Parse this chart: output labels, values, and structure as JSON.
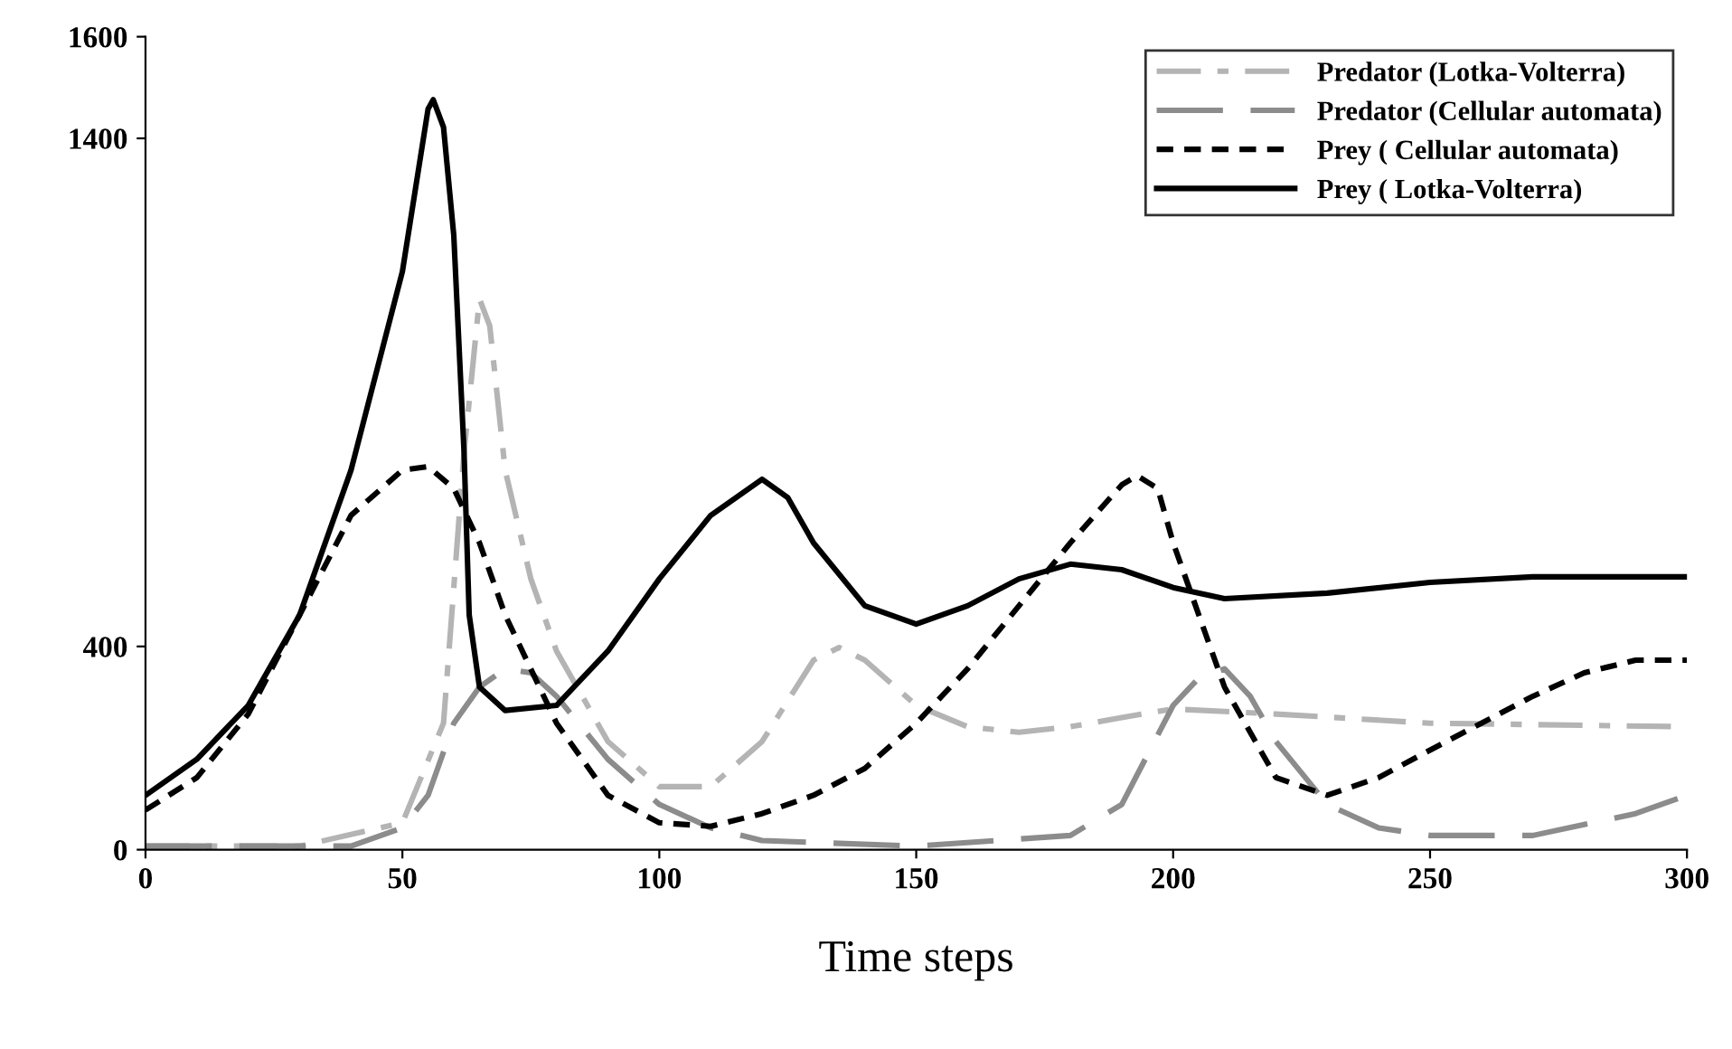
{
  "chart_data": {
    "type": "line",
    "xlabel": "Time steps",
    "xlim": [
      0,
      300
    ],
    "xticks": [
      0,
      50,
      100,
      150,
      200,
      250,
      300
    ],
    "ylim": [
      0,
      1600
    ],
    "yticks": [
      0,
      400,
      1400,
      1600
    ],
    "grid": false,
    "legend": "top right",
    "marker": "none",
    "series": [
      {
        "name": "Predator (Lotka-Volterra)",
        "color": "#b4b4b4",
        "line_style": "dashdot",
        "x": [
          0,
          30,
          50,
          58,
          62,
          65,
          67,
          70,
          75,
          80,
          90,
          100,
          110,
          120,
          130,
          135,
          140,
          150,
          160,
          170,
          180,
          190,
          200,
          220,
          250,
          300
        ],
        "values": [
          7,
          7,
          53,
          249,
          782,
          1084,
          1031,
          747,
          533,
          391,
          213,
          124,
          124,
          213,
          373,
          398,
          373,
          284,
          242,
          231,
          242,
          260,
          277,
          267,
          249,
          242
        ]
      },
      {
        "name": "Predator (Cellular automata)",
        "color": "#8c8c8c",
        "line_style": "longdash",
        "x": [
          0,
          40,
          50,
          55,
          60,
          65,
          70,
          75,
          80,
          90,
          100,
          110,
          120,
          150,
          180,
          190,
          200,
          205,
          210,
          215,
          220,
          230,
          240,
          250,
          270,
          290,
          300
        ],
        "values": [
          7,
          7,
          43,
          107,
          249,
          320,
          356,
          348,
          302,
          178,
          89,
          43,
          18,
          7,
          28,
          89,
          284,
          338,
          356,
          302,
          213,
          89,
          43,
          28,
          28,
          71,
          107
        ]
      },
      {
        "name": "Prey ( Cellular automata)",
        "color": "#000000",
        "line_style": "dashed",
        "x": [
          0,
          10,
          20,
          30,
          40,
          50,
          55,
          60,
          65,
          70,
          80,
          90,
          100,
          110,
          120,
          130,
          140,
          150,
          160,
          170,
          180,
          190,
          193,
          197,
          200,
          210,
          220,
          230,
          240,
          250,
          260,
          270,
          280,
          290,
          300
        ],
        "values": [
          78,
          142,
          267,
          462,
          658,
          747,
          754,
          711,
          604,
          462,
          249,
          107,
          53,
          46,
          71,
          107,
          160,
          249,
          356,
          480,
          604,
          718,
          736,
          711,
          604,
          320,
          142,
          107,
          142,
          196,
          249,
          302,
          348,
          373,
          373
        ]
      },
      {
        "name": "Prey ( Lotka-Volterra)",
        "color": "#000000",
        "line_style": "solid",
        "x": [
          0,
          10,
          20,
          30,
          40,
          50,
          55,
          56,
          58,
          60,
          62,
          63,
          65,
          70,
          80,
          90,
          100,
          110,
          120,
          125,
          130,
          140,
          150,
          160,
          170,
          180,
          190,
          200,
          210,
          230,
          250,
          270,
          300
        ],
        "values": [
          107,
          178,
          284,
          462,
          747,
          1138,
          1458,
          1476,
          1422,
          1209,
          782,
          462,
          320,
          274,
          284,
          391,
          533,
          658,
          729,
          693,
          604,
          480,
          444,
          480,
          533,
          562,
          551,
          516,
          494,
          505,
          526,
          537,
          537
        ]
      }
    ]
  }
}
